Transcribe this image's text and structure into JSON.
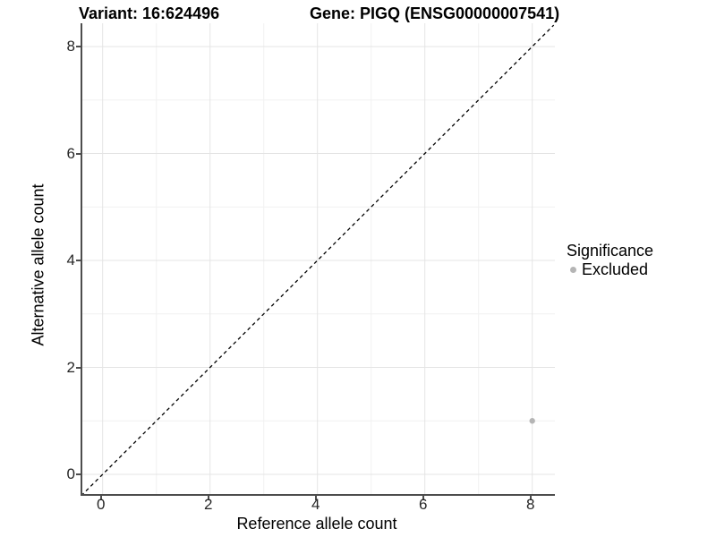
{
  "header": {
    "title_left": "Variant: 16:624496",
    "title_right": "Gene: PIGQ (ENSG00000007541)"
  },
  "chart_data": {
    "type": "scatter",
    "title_left": "Variant: 16:624496",
    "title_right": "Gene: PIGQ (ENSG00000007541)",
    "xlabel": "Reference allele count",
    "ylabel": "Alternative allele count",
    "xlim": [
      -0.4,
      8.4
    ],
    "ylim": [
      -0.4,
      8.4
    ],
    "x_major_ticks": [
      0,
      2,
      4,
      6,
      8
    ],
    "y_major_ticks": [
      0,
      2,
      4,
      6,
      8
    ],
    "x_minor_ticks": [
      1,
      3,
      5,
      7
    ],
    "y_minor_ticks": [
      1,
      3,
      5,
      7
    ],
    "grid": "on",
    "identity_line": {
      "type": "dashed",
      "from": [
        -0.4,
        -0.4
      ],
      "to": [
        8.4,
        8.4
      ],
      "color": "#000000"
    },
    "series": [
      {
        "name": "Excluded",
        "color": "#b5b5b5",
        "points": [
          {
            "x": 8,
            "y": 1
          }
        ]
      }
    ],
    "legend": {
      "position": "right",
      "title": "Significance",
      "items": [
        {
          "label": "Excluded",
          "color": "#b5b5b5"
        }
      ]
    },
    "colors": {
      "axis_line": "#4d4d4d",
      "tick_label": "#262626",
      "grid_major": "#e4e4e4",
      "grid_minor": "#f1f1f1",
      "background": "#ffffff"
    }
  }
}
